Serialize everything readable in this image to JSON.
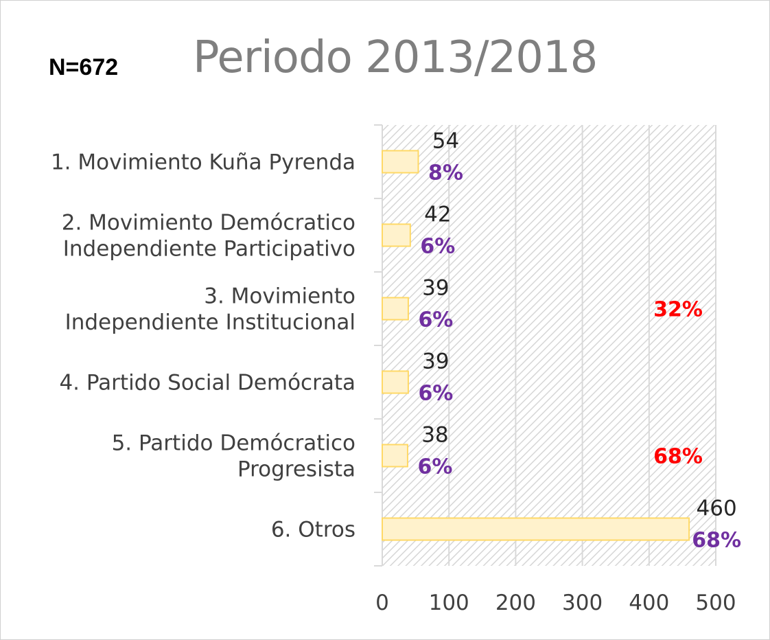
{
  "chart_data": {
    "type": "bar",
    "orientation": "horizontal",
    "title": "Periodo 2013/2018",
    "sample_size_label": "N=672",
    "categories": [
      "1. Movimiento Kuña Pyrenda",
      "2. Movimiento Demócratico Independiente Participativo",
      "3. Movimiento Independiente Institucional",
      "4. Partido Social Demócrata",
      "5. Partido Demócratico Progresista",
      "6. Otros"
    ],
    "category_lines": [
      [
        "1. Movimiento Kuña Pyrenda"
      ],
      [
        "2. Movimiento Demócratico",
        "Independiente Participativo"
      ],
      [
        "3. Movimiento",
        "Independiente Institucional"
      ],
      [
        "4. Partido Social Demócrata"
      ],
      [
        "5. Partido Demócratico",
        "Progresista"
      ],
      [
        "6. Otros"
      ]
    ],
    "values": [
      54,
      42,
      39,
      39,
      38,
      460
    ],
    "percent_labels": [
      "8%",
      "6%",
      "6%",
      "6%",
      "6%",
      "68%"
    ],
    "xlim": [
      0,
      500
    ],
    "x_ticks": [
      0,
      100,
      200,
      300,
      400,
      500
    ],
    "grid": true,
    "annotations": [
      {
        "text": "32%",
        "color": "#ff0000",
        "near_category": "3. Movimiento Independiente Institucional"
      },
      {
        "text": "68%",
        "color": "#ff0000",
        "near_category": "5. Partido Demócratico Progresista"
      }
    ],
    "colors": {
      "bar_fill": "#fff2cc",
      "bar_stroke": "#ffd966",
      "percent_label": "#7030a0",
      "annotation": "#ff0000",
      "title": "#7f7f7f",
      "axis": "#d9d9d9"
    }
  }
}
